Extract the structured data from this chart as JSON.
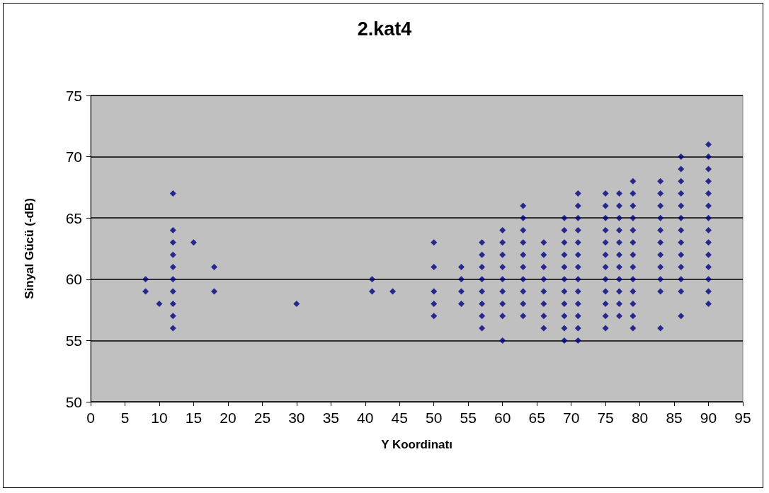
{
  "chart_data": {
    "type": "scatter",
    "title": "2.kat4",
    "xlabel": "Y Koordinatı",
    "ylabel": "Sinyal Gücü (-dB)",
    "color": "#000080",
    "marker": "diamond",
    "grid": "y",
    "x": [
      8,
      8,
      10,
      12,
      12,
      12,
      12,
      12,
      12,
      12,
      12,
      12,
      12,
      15,
      18,
      18,
      30,
      41,
      41,
      44,
      50,
      50,
      50,
      50,
      50,
      54,
      54,
      54,
      54,
      57,
      57,
      57,
      57,
      57,
      57,
      57,
      57,
      60,
      60,
      60,
      60,
      60,
      60,
      60,
      60,
      60,
      63,
      63,
      63,
      63,
      63,
      63,
      63,
      63,
      63,
      63,
      66,
      66,
      66,
      66,
      66,
      66,
      66,
      66,
      69,
      69,
      69,
      69,
      69,
      69,
      69,
      69,
      69,
      69,
      69,
      71,
      71,
      71,
      71,
      71,
      71,
      71,
      71,
      71,
      71,
      71,
      71,
      71,
      75,
      75,
      75,
      75,
      75,
      75,
      75,
      75,
      75,
      75,
      75,
      75,
      77,
      77,
      77,
      77,
      77,
      77,
      77,
      77,
      77,
      77,
      77,
      79,
      79,
      79,
      79,
      79,
      79,
      79,
      79,
      79,
      79,
      79,
      79,
      79,
      83,
      83,
      83,
      83,
      83,
      83,
      83,
      83,
      83,
      83,
      83,
      86,
      86,
      86,
      86,
      86,
      86,
      86,
      86,
      86,
      86,
      86,
      86,
      86,
      90,
      90,
      90,
      90,
      90,
      90,
      90,
      90,
      90,
      90,
      90,
      90,
      90,
      90
    ],
    "values": [
      60,
      59,
      58,
      67,
      64,
      63,
      62,
      61,
      60,
      59,
      58,
      57,
      56,
      63,
      61,
      59,
      58,
      60,
      59,
      59,
      63,
      61,
      59,
      58,
      57,
      61,
      60,
      59,
      58,
      63,
      62,
      61,
      60,
      59,
      58,
      57,
      56,
      64,
      63,
      62,
      61,
      60,
      59,
      58,
      57,
      55,
      66,
      65,
      64,
      63,
      62,
      61,
      60,
      59,
      58,
      57,
      63,
      62,
      61,
      60,
      59,
      58,
      57,
      56,
      65,
      64,
      63,
      62,
      61,
      60,
      59,
      58,
      57,
      56,
      55,
      67,
      66,
      65,
      64,
      63,
      62,
      61,
      60,
      59,
      58,
      57,
      56,
      55,
      67,
      66,
      65,
      64,
      63,
      62,
      61,
      60,
      59,
      58,
      57,
      56,
      67,
      66,
      65,
      64,
      63,
      62,
      61,
      60,
      59,
      58,
      57,
      68,
      67,
      66,
      65,
      64,
      63,
      62,
      61,
      60,
      59,
      58,
      57,
      56,
      68,
      67,
      66,
      65,
      64,
      63,
      62,
      61,
      60,
      59,
      56,
      70,
      69,
      68,
      67,
      66,
      65,
      64,
      63,
      62,
      61,
      60,
      59,
      57,
      71,
      70,
      69,
      68,
      67,
      66,
      65,
      64,
      63,
      62,
      61,
      60,
      59,
      58
    ],
    "xlim": [
      0,
      95
    ],
    "xticks": [
      0,
      5,
      10,
      15,
      20,
      25,
      30,
      35,
      40,
      45,
      50,
      55,
      60,
      65,
      70,
      75,
      80,
      85,
      90,
      95
    ],
    "ylim": [
      50,
      75
    ],
    "yticks": [
      50,
      55,
      60,
      65,
      70,
      75
    ]
  }
}
